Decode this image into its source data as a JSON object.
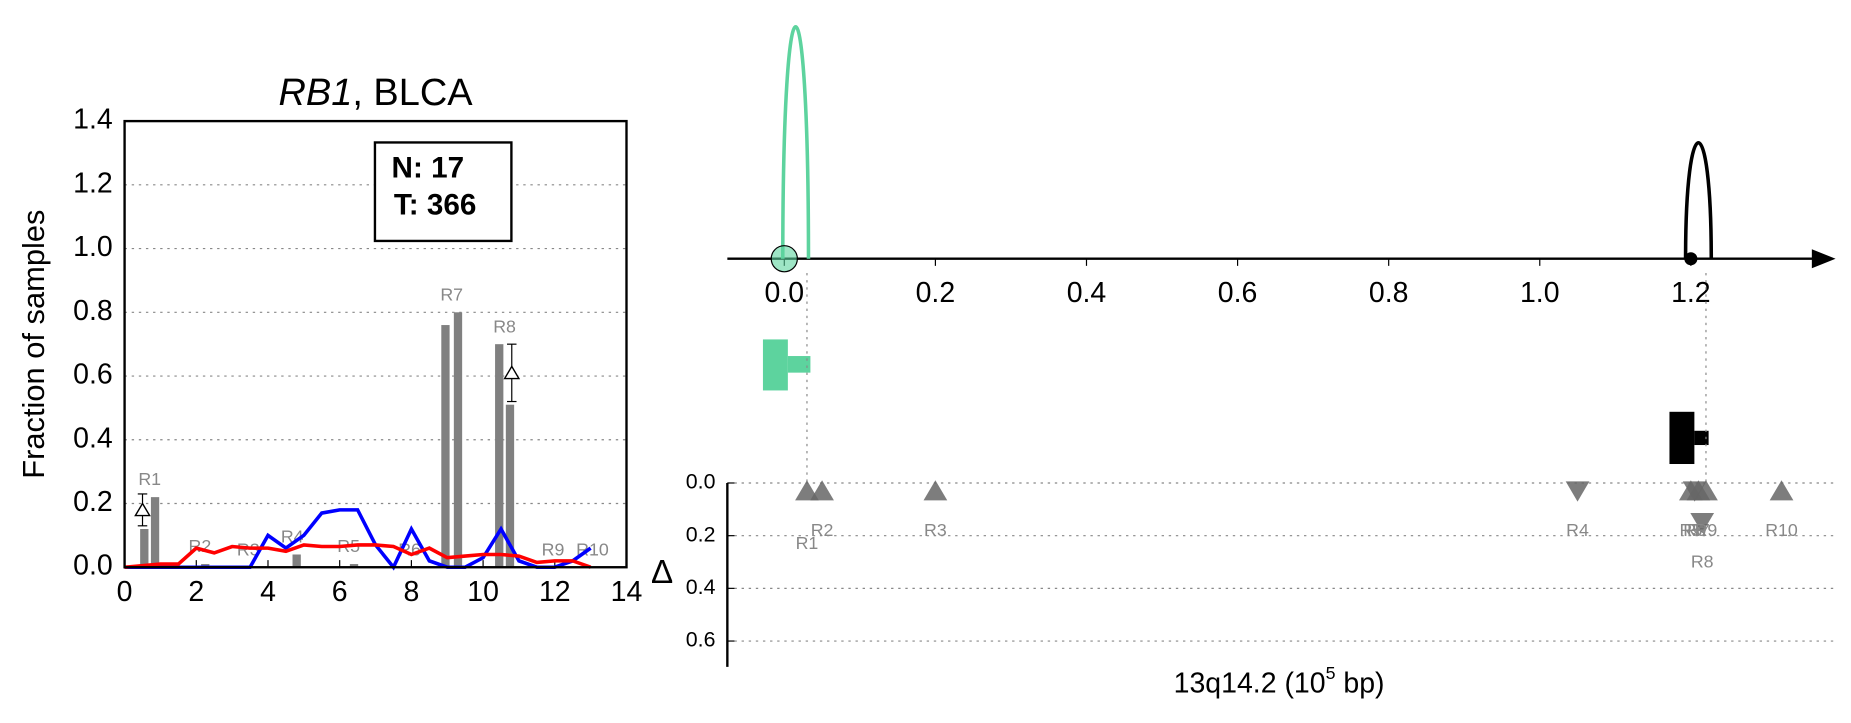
{
  "chart_data": [
    {
      "type": "bar",
      "title_gene": "RB1",
      "title_rest": ", BLCA",
      "ylabel": "Fraction of samples",
      "annotation_n": "N: 17",
      "annotation_t": "T: 366",
      "xlim": [
        0,
        14
      ],
      "xticks": [
        0,
        2,
        4,
        6,
        8,
        10,
        12,
        14
      ],
      "ylim": [
        0,
        1.4
      ],
      "yticks": [
        {
          "value": 0,
          "label": "0.0"
        },
        {
          "value": 0.2,
          "label": "0.2"
        },
        {
          "value": 0.4,
          "label": "0.4"
        },
        {
          "value": 0.6,
          "label": "0.6"
        },
        {
          "value": 0.8,
          "label": "0.8"
        },
        {
          "value": 1.0,
          "label": "1.0"
        },
        {
          "value": 1.2,
          "label": "1.2"
        },
        {
          "value": 1.4,
          "label": "1.4"
        }
      ],
      "grid": true,
      "bar_color": "#808080",
      "regions": [
        {
          "label": "R1",
          "x": [
            0.55,
            0.85
          ],
          "values": [
            0.12,
            0.22
          ]
        },
        {
          "label": "R2",
          "x": [
            1.95,
            2.25
          ],
          "values": [
            0,
            0.01
          ]
        },
        {
          "label": "R3",
          "x": [
            3.3,
            3.6
          ],
          "values": [
            0,
            0
          ]
        },
        {
          "label": "R4",
          "x": [
            4.55,
            4.8
          ],
          "values": [
            0,
            0.04
          ]
        },
        {
          "label": "R5",
          "x": [
            6.1,
            6.4
          ],
          "values": [
            0,
            0.01
          ]
        },
        {
          "label": "R6",
          "x": [
            7.8,
            8.1
          ],
          "values": [
            0,
            0
          ]
        },
        {
          "label": "R7",
          "x": [
            8.95,
            9.3
          ],
          "values": [
            0.76,
            0.8
          ]
        },
        {
          "label": "R8",
          "x": [
            10.45,
            10.75
          ],
          "values": [
            0.7,
            0.51
          ]
        },
        {
          "label": "R9",
          "x": [
            11.8,
            12.1
          ],
          "values": [
            0,
            0
          ]
        },
        {
          "label": "R10",
          "x": [
            12.9,
            13.2
          ],
          "values": [
            0,
            0
          ]
        }
      ],
      "deltas": {
        "x": [
          0.5,
          10.8
        ],
        "values": [
          0.18,
          0.61
        ],
        "errors": [
          0.05,
          0.09
        ]
      },
      "x": [
        0,
        0.5,
        1,
        1.5,
        2,
        2.5,
        3,
        3.5,
        4,
        4.5,
        5,
        5.5,
        6,
        6.5,
        7,
        7.5,
        8,
        8.5,
        9,
        9.5,
        10,
        10.5,
        11,
        11.5,
        12,
        12.5,
        13
      ],
      "series": [
        {
          "color": "#0000ff",
          "values": [
            0,
            0,
            0,
            0,
            0,
            0,
            0,
            0,
            0.1,
            0.06,
            0.1,
            0.17,
            0.18,
            0.18,
            0.07,
            0,
            0.12,
            0.02,
            0,
            0,
            0.03,
            0.12,
            0.02,
            0,
            0,
            0.02,
            0.06
          ]
        },
        {
          "color": "#ff0000",
          "values": [
            0,
            0.005,
            0.01,
            0.01,
            0.06,
            0.045,
            0.065,
            0.06,
            0.06,
            0.05,
            0.07,
            0.065,
            0.065,
            0.07,
            0.07,
            0.065,
            0.04,
            0.06,
            0.03,
            0.035,
            0.04,
            0.04,
            0.035,
            0.015,
            0.02,
            0.02,
            0
          ]
        }
      ]
    },
    {
      "type": "track",
      "xlabel": "13q14.2 (10",
      "xlabel_sup": "5",
      "xlabel_end": " bp)",
      "ylabel": "Δ",
      "xlim": [
        -0.08,
        1.4
      ],
      "xticks": [
        {
          "value": 0,
          "label": "0.0"
        },
        {
          "value": 0.2,
          "label": "0.2"
        },
        {
          "value": 0.4,
          "label": "0.4"
        },
        {
          "value": 0.6,
          "label": "0.6"
        },
        {
          "value": 0.8,
          "label": "0.8"
        },
        {
          "value": 1.0,
          "label": "1.0"
        },
        {
          "value": 1.2,
          "label": "1.2"
        }
      ],
      "ylim": [
        0,
        0.7
      ],
      "yticks": [
        {
          "value": 0,
          "label": "0.0"
        },
        {
          "value": 0.2,
          "label": "0.2"
        },
        {
          "value": 0.4,
          "label": "0.4"
        },
        {
          "value": 0.6,
          "label": "0.6"
        }
      ],
      "grid": true,
      "peaks": [
        {
          "x": 0.015,
          "height": 1.0,
          "color": "#5dd39e"
        },
        {
          "x": 1.21,
          "height": 0.5,
          "color": "#000000"
        }
      ],
      "anchors": [
        {
          "x": 0.0,
          "color": "#5dd39e"
        },
        {
          "x": 1.2,
          "color": "#000000"
        }
      ],
      "marker_color": "#666666",
      "regions": {
        "labels": [
          "R1",
          "R2",
          "R3",
          "R4",
          "R5",
          "R6",
          "R7",
          "R8",
          "R9",
          "R10"
        ],
        "x": [
          0.03,
          0.05,
          0.2,
          1.05,
          1.2,
          1.205,
          1.21,
          1.215,
          1.22,
          1.32
        ],
        "values": [
          0.03,
          0.03,
          0.03,
          0.03,
          0.03,
          0.03,
          0.03,
          0.15,
          0.03,
          0.03
        ],
        "direction": [
          "up",
          "up",
          "up",
          "down",
          "up",
          "down",
          "up",
          "down",
          "up",
          "up"
        ]
      }
    }
  ]
}
